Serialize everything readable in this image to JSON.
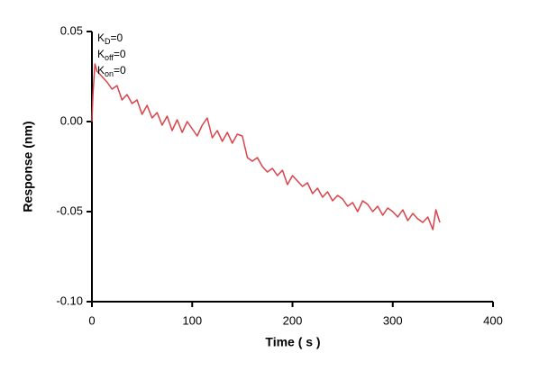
{
  "chart_data": {
    "type": "line",
    "x_label": "Time ( s )",
    "y_label": "Response (nm)",
    "annotations": [
      {
        "main": "K",
        "sub": "D",
        "rest": "=0"
      },
      {
        "main": "K",
        "sub": "off",
        "rest": "=0"
      },
      {
        "main": "K",
        "sub": "on",
        "rest": "=0"
      }
    ],
    "x": [
      0,
      1,
      3,
      5,
      10,
      15,
      20,
      25,
      30,
      35,
      40,
      45,
      50,
      55,
      60,
      65,
      70,
      75,
      80,
      85,
      90,
      95,
      100,
      105,
      110,
      115,
      120,
      125,
      130,
      135,
      140,
      145,
      150,
      155,
      160,
      165,
      170,
      175,
      180,
      185,
      190,
      195,
      200,
      205,
      210,
      215,
      220,
      225,
      230,
      235,
      240,
      245,
      250,
      255,
      260,
      265,
      270,
      275,
      280,
      285,
      290,
      295,
      300,
      305,
      310,
      315,
      320,
      325,
      330,
      335,
      340,
      343,
      347
    ],
    "values": [
      0.0,
      0.015,
      0.032,
      0.028,
      0.025,
      0.022,
      0.018,
      0.02,
      0.012,
      0.015,
      0.01,
      0.012,
      0.004,
      0.009,
      0.002,
      0.005,
      -0.002,
      0.003,
      -0.005,
      0.001,
      -0.006,
      0.0,
      -0.004,
      -0.008,
      -0.002,
      0.002,
      -0.009,
      -0.005,
      -0.011,
      -0.006,
      -0.012,
      -0.007,
      -0.008,
      -0.02,
      -0.022,
      -0.02,
      -0.025,
      -0.028,
      -0.026,
      -0.03,
      -0.027,
      -0.035,
      -0.03,
      -0.033,
      -0.036,
      -0.034,
      -0.04,
      -0.037,
      -0.042,
      -0.039,
      -0.044,
      -0.041,
      -0.043,
      -0.047,
      -0.045,
      -0.05,
      -0.044,
      -0.046,
      -0.05,
      -0.047,
      -0.052,
      -0.048,
      -0.05,
      -0.053,
      -0.049,
      -0.055,
      -0.051,
      -0.054,
      -0.056,
      -0.053,
      -0.06,
      -0.049,
      -0.056
    ],
    "color": "#d9434a",
    "xlim": [
      0,
      400
    ],
    "xticks": [
      0,
      100,
      200,
      300,
      400
    ],
    "ylim": [
      -0.1,
      0.05
    ],
    "yticks": [
      0.05,
      {
        "value": 0,
        "label": "0.00"
      },
      -0.05,
      {
        "value": -0.1,
        "label": "-0.10"
      }
    ]
  }
}
